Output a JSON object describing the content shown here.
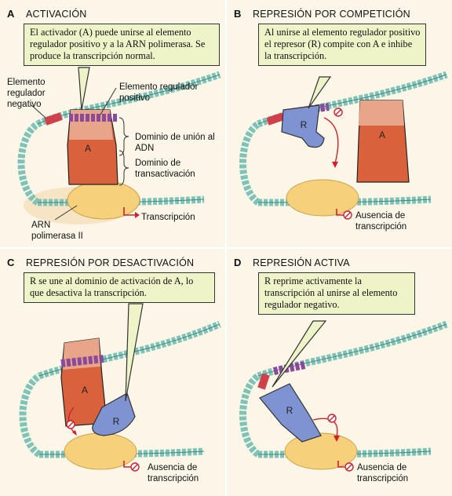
{
  "panels": {
    "a": {
      "letter": "A",
      "title": "ACTIVACIÓN",
      "callout": "El activador (A) puede unirse al elemento regulador positivo y a la ARN polimerasa. Se produce la transcripción normal.",
      "labels": {
        "negative_element": "Elemento regulador negativo",
        "positive_element": "Elemento regulador positivo",
        "dna_binding_domain": "Dominio de unión al ADN",
        "transactivation_domain": "Dominio de transactivación",
        "rna_pol": "ARN polimerasa II",
        "transcription": "Transcripción",
        "activator": "A"
      }
    },
    "b": {
      "letter": "B",
      "title": "REPRESIÓN POR COMPETICIÓN",
      "callout": "Al unirse al elemento regulador positivo el represor (R) compite con A e inhibe la transcripción.",
      "labels": {
        "repressor": "R",
        "activator": "A",
        "no_transcription": "Ausencia de transcripción"
      }
    },
    "c": {
      "letter": "C",
      "title": "REPRESIÓN POR DESACTIVACIÓN",
      "callout": "R se une al dominio de activación de A, lo que desactiva la transcripción.",
      "labels": {
        "activator": "A",
        "repressor": "R",
        "no_transcription": "Ausencia de transcripción"
      }
    },
    "d": {
      "letter": "D",
      "title": "REPRESIÓN ACTIVA",
      "callout": "R reprime activamente la transcripción al unirse al elemento regulador negativo.",
      "labels": {
        "repressor": "R",
        "no_transcription": "Ausencia de transcripción"
      }
    }
  },
  "colors": {
    "panel_bg": "#fbf6e7",
    "callout_bg": "#eef3c8",
    "dna": "#7fc3b8",
    "positive_element": "#8a4a9a",
    "negative_element": "#d0404a",
    "activator_light": "#e9a58a",
    "activator_dark": "#d9623c",
    "repressor": "#7f93d2",
    "rna_pol": "#f6d07a",
    "arrow": "#d1202c"
  }
}
